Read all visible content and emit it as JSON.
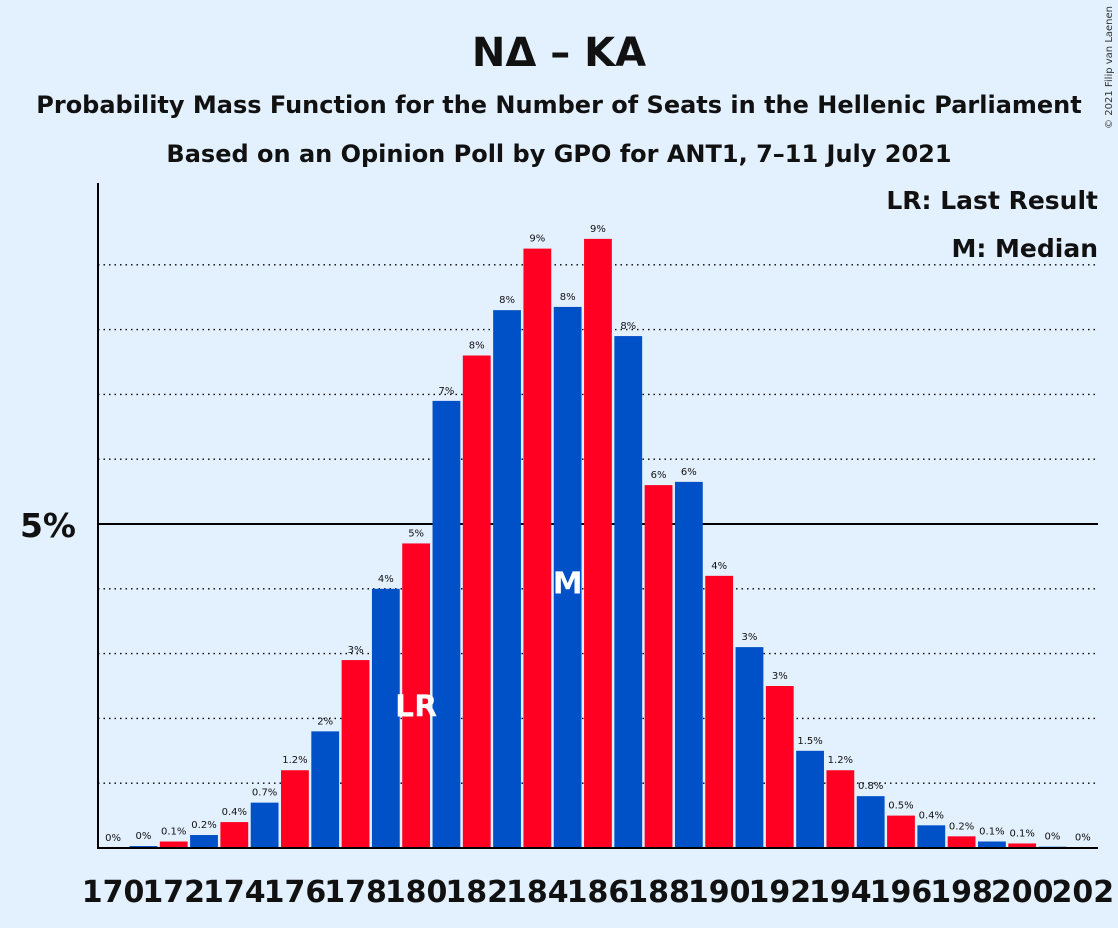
{
  "title": "NΔ – KA",
  "subtitle_1": "Probability Mass Function for the Number of Seats in the Hellenic Parliament",
  "subtitle_2": "Based on an Opinion Poll by GPO for ANT1, 7–11 July 2021",
  "legend": {
    "last_result": "LR: Last Result",
    "median": "M: Median"
  },
  "copyright": "© 2021 Filip van Laenen",
  "colors": {
    "background": "#E3F0FD",
    "blue": "#0050C8",
    "red": "#FF0022"
  },
  "chart_data": {
    "type": "bar",
    "categories": [
      170,
      171,
      172,
      173,
      174,
      175,
      176,
      177,
      178,
      179,
      180,
      181,
      182,
      183,
      184,
      185,
      186,
      187,
      188,
      189,
      190,
      191,
      192,
      193,
      194,
      195,
      196,
      197,
      198,
      199,
      200,
      201,
      202
    ],
    "values": [
      0.0,
      0.03,
      0.1,
      0.2,
      0.4,
      0.7,
      1.2,
      1.8,
      2.9,
      4.0,
      4.7,
      6.9,
      7.6,
      8.3,
      9.25,
      8.35,
      9.4,
      7.9,
      5.6,
      5.65,
      4.2,
      3.1,
      2.5,
      1.5,
      1.2,
      0.8,
      0.5,
      0.35,
      0.18,
      0.1,
      0.07,
      0.02,
      0.01
    ],
    "data_labels": [
      "0%",
      "0%",
      "0.1%",
      "0.2%",
      "0.4%",
      "0.7%",
      "1.2%",
      "2%",
      "3%",
      "4%",
      "5%",
      "7%",
      "8%",
      "8%",
      "9%",
      "8%",
      "9%",
      "8%",
      "6%",
      "6%",
      "4%",
      "3%",
      "3%",
      "1.5%",
      "1.2%",
      "0.8%",
      "0.5%",
      "0.4%",
      "0.2%",
      "0.1%",
      "0.1%",
      "0%",
      "0%"
    ],
    "x_tick_labels": [
      "170",
      "172",
      "174",
      "176",
      "178",
      "180",
      "182",
      "184",
      "186",
      "188",
      "190",
      "192",
      "194",
      "196",
      "198",
      "200",
      "202"
    ],
    "y_tick_label": "5%",
    "y_tick_value": 5,
    "y_gridlines": [
      1,
      2,
      3,
      4,
      6,
      7,
      8,
      9
    ],
    "ylim": [
      0,
      10.3
    ],
    "grid": true,
    "last_result": {
      "seat": 180,
      "label": "LR"
    },
    "median": {
      "seat": 185,
      "label": "M"
    },
    "legend_position": "top-right"
  }
}
